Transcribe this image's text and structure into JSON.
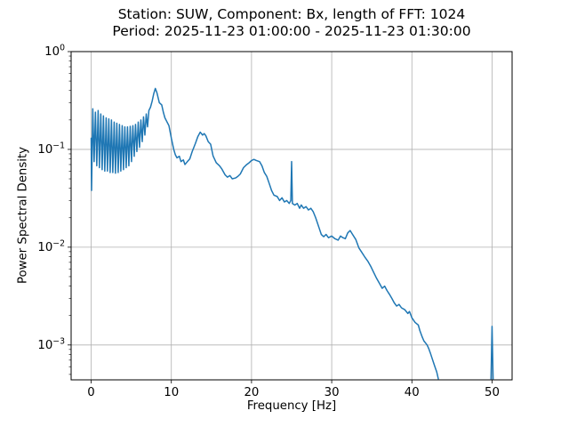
{
  "chart_data": {
    "type": "line",
    "title_lines": [
      "Station: SUW, Component: Bx, length of FFT: 1024",
      "Period: 2025-11-23 01:00:00 - 2025-11-23 01:30:00"
    ],
    "title": "Station: SUW, Component: Bx, length of FFT: 1024\nPeriod: 2025-11-23 01:00:00 - 2025-11-23 01:30:00",
    "xlabel": "Frequency [Hz]",
    "ylabel": "Power Spectral Density",
    "grid": true,
    "legend": "none",
    "line_color": "#1f77b4",
    "grid_color": "#b0b0b0",
    "spine_color": "#000000",
    "x_axis": {
      "scale": "linear",
      "min": -2.5,
      "max": 52.5,
      "ticks": [
        0,
        10,
        20,
        30,
        40,
        50
      ]
    },
    "y_axis": {
      "scale": "log",
      "min": 0.00044,
      "max": 1.0,
      "tick_exponents": [
        0,
        -1,
        -2,
        -3
      ],
      "minor_ticks": true
    },
    "series": [
      {
        "name": "PSD",
        "color": "#1f77b4",
        "segments": [
          [
            [
              0.0,
              0.13
            ],
            [
              0.05,
              0.038
            ],
            [
              0.2,
              0.26
            ],
            [
              0.37,
              0.075
            ],
            [
              0.53,
              0.24
            ],
            [
              0.7,
              0.068
            ],
            [
              0.87,
              0.25
            ],
            [
              1.03,
              0.065
            ],
            [
              1.2,
              0.23
            ],
            [
              1.37,
              0.062
            ],
            [
              1.53,
              0.22
            ],
            [
              1.7,
              0.06
            ],
            [
              1.87,
              0.21
            ],
            [
              2.03,
              0.06
            ],
            [
              2.2,
              0.205
            ],
            [
              2.37,
              0.058
            ],
            [
              2.53,
              0.2
            ],
            [
              2.7,
              0.058
            ],
            [
              2.87,
              0.19
            ],
            [
              3.03,
              0.057
            ],
            [
              3.2,
              0.185
            ],
            [
              3.37,
              0.058
            ],
            [
              3.53,
              0.18
            ],
            [
              3.7,
              0.06
            ],
            [
              3.87,
              0.175
            ],
            [
              4.03,
              0.062
            ],
            [
              4.2,
              0.17
            ],
            [
              4.37,
              0.065
            ],
            [
              4.53,
              0.17
            ],
            [
              4.7,
              0.068
            ],
            [
              4.87,
              0.172
            ],
            [
              5.03,
              0.075
            ],
            [
              5.2,
              0.175
            ],
            [
              5.37,
              0.085
            ],
            [
              5.53,
              0.18
            ],
            [
              5.7,
              0.095
            ],
            [
              5.87,
              0.19
            ],
            [
              6.03,
              0.105
            ],
            [
              6.2,
              0.2
            ],
            [
              6.37,
              0.12
            ],
            [
              6.53,
              0.215
            ],
            [
              6.7,
              0.14
            ],
            [
              6.87,
              0.23
            ],
            [
              7.03,
              0.17
            ],
            [
              7.2,
              0.25
            ],
            [
              7.4,
              0.27
            ],
            [
              7.6,
              0.31
            ],
            [
              7.8,
              0.37
            ],
            [
              8.0,
              0.42
            ],
            [
              8.2,
              0.38
            ],
            [
              8.5,
              0.3
            ],
            [
              8.8,
              0.285
            ],
            [
              9.0,
              0.24
            ],
            [
              9.2,
              0.21
            ],
            [
              9.4,
              0.195
            ],
            [
              9.7,
              0.175
            ],
            [
              10.0,
              0.13
            ],
            [
              10.3,
              0.1
            ],
            [
              10.5,
              0.088
            ],
            [
              10.7,
              0.082
            ],
            [
              11.0,
              0.085
            ],
            [
              11.2,
              0.075
            ],
            [
              11.5,
              0.078
            ],
            [
              11.7,
              0.07
            ],
            [
              12.0,
              0.075
            ],
            [
              12.3,
              0.08
            ],
            [
              12.6,
              0.095
            ],
            [
              13.0,
              0.115
            ],
            [
              13.3,
              0.135
            ],
            [
              13.6,
              0.15
            ],
            [
              13.9,
              0.14
            ],
            [
              14.1,
              0.145
            ],
            [
              14.3,
              0.138
            ],
            [
              14.6,
              0.12
            ],
            [
              14.9,
              0.113
            ],
            [
              15.2,
              0.086
            ],
            [
              15.6,
              0.073
            ],
            [
              16.0,
              0.068
            ],
            [
              16.3,
              0.063
            ],
            [
              16.7,
              0.055
            ],
            [
              17.0,
              0.052
            ],
            [
              17.3,
              0.054
            ],
            [
              17.6,
              0.05
            ],
            [
              18.0,
              0.051
            ],
            [
              18.3,
              0.053
            ],
            [
              18.6,
              0.056
            ],
            [
              19.0,
              0.065
            ],
            [
              19.4,
              0.07
            ],
            [
              19.7,
              0.073
            ],
            [
              20.0,
              0.077
            ],
            [
              20.3,
              0.079
            ],
            [
              20.6,
              0.077
            ],
            [
              21.0,
              0.075
            ],
            [
              21.3,
              0.068
            ],
            [
              21.6,
              0.058
            ],
            [
              21.9,
              0.053
            ],
            [
              22.2,
              0.045
            ],
            [
              22.5,
              0.038
            ],
            [
              22.8,
              0.034
            ],
            [
              23.2,
              0.033
            ],
            [
              23.5,
              0.03
            ],
            [
              23.8,
              0.032
            ],
            [
              24.1,
              0.029
            ],
            [
              24.4,
              0.03
            ],
            [
              24.7,
              0.028
            ],
            [
              24.9,
              0.03
            ],
            [
              25.0,
              0.075
            ],
            [
              25.1,
              0.028
            ],
            [
              25.4,
              0.027
            ],
            [
              25.7,
              0.028
            ],
            [
              26.0,
              0.025
            ],
            [
              26.2,
              0.027
            ],
            [
              26.5,
              0.025
            ],
            [
              26.8,
              0.026
            ],
            [
              27.1,
              0.024
            ],
            [
              27.4,
              0.025
            ],
            [
              27.7,
              0.023
            ],
            [
              28.0,
              0.02
            ],
            [
              28.4,
              0.016
            ],
            [
              28.7,
              0.0135
            ],
            [
              29.0,
              0.0128
            ],
            [
              29.3,
              0.0135
            ],
            [
              29.6,
              0.0125
            ],
            [
              30.0,
              0.013
            ],
            [
              30.4,
              0.0122
            ],
            [
              30.8,
              0.0118
            ],
            [
              31.1,
              0.013
            ],
            [
              31.4,
              0.0125
            ],
            [
              31.7,
              0.0122
            ],
            [
              32.0,
              0.014
            ],
            [
              32.3,
              0.0148
            ],
            [
              32.6,
              0.0135
            ],
            [
              33.0,
              0.012
            ],
            [
              33.4,
              0.0098
            ],
            [
              33.7,
              0.009
            ],
            [
              34.1,
              0.008
            ],
            [
              34.5,
              0.0072
            ],
            [
              34.9,
              0.0063
            ],
            [
              35.2,
              0.0056
            ],
            [
              35.6,
              0.0048
            ],
            [
              36.0,
              0.0042
            ],
            [
              36.3,
              0.0038
            ],
            [
              36.6,
              0.004
            ],
            [
              36.9,
              0.0036
            ],
            [
              37.2,
              0.0033
            ],
            [
              37.5,
              0.003
            ],
            [
              37.8,
              0.0027
            ],
            [
              38.1,
              0.0025
            ],
            [
              38.4,
              0.0026
            ],
            [
              38.7,
              0.0024
            ],
            [
              39.1,
              0.0023
            ],
            [
              39.5,
              0.0021
            ],
            [
              39.7,
              0.0022
            ],
            [
              40.0,
              0.0019
            ],
            [
              40.4,
              0.0017
            ],
            [
              40.8,
              0.0016
            ],
            [
              41.0,
              0.0014
            ],
            [
              41.3,
              0.0012
            ],
            [
              41.5,
              0.0011
            ],
            [
              41.9,
              0.001
            ],
            [
              42.1,
              0.00092
            ],
            [
              42.3,
              0.00083
            ],
            [
              42.5,
              0.00074
            ],
            [
              42.7,
              0.00066
            ],
            [
              42.9,
              0.00059
            ],
            [
              43.1,
              0.00053
            ],
            [
              43.3,
              0.00045
            ]
          ],
          [
            [
              49.87,
              0.00045
            ],
            [
              50.0,
              0.00155
            ],
            [
              50.13,
              0.00045
            ]
          ]
        ]
      }
    ]
  }
}
